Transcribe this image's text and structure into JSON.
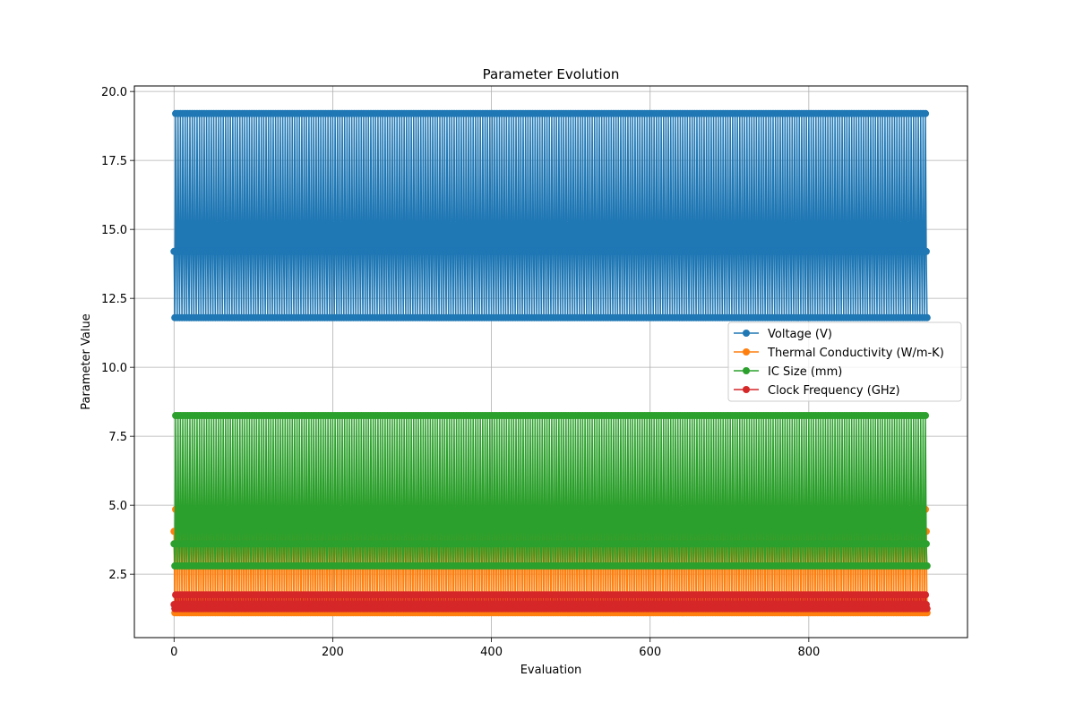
{
  "chart_data": {
    "type": "line",
    "title": "Parameter Evolution",
    "xlabel": "Evaluation",
    "ylabel": "Parameter Value",
    "xlim": [
      -50,
      1000
    ],
    "ylim": [
      0.2,
      20.2
    ],
    "x_ticks": [
      0,
      200,
      400,
      600,
      800
    ],
    "y_ticks": [
      2.5,
      5.0,
      7.5,
      10.0,
      12.5,
      15.0,
      17.5,
      20.0
    ],
    "grid": true,
    "legend_position": "center-right",
    "n_evaluations": 950,
    "series": [
      {
        "name": "Voltage (V)",
        "color": "#1f77b4",
        "levels": [
          14.2,
          11.8,
          19.2
        ]
      },
      {
        "name": "Thermal Conductivity (W/m-K)",
        "color": "#ff7f0e",
        "levels": [
          4.05,
          1.1,
          4.85
        ]
      },
      {
        "name": "IC Size (mm)",
        "color": "#2ca02c",
        "levels": [
          3.6,
          2.8,
          8.25
        ]
      },
      {
        "name": "Clock Frequency (GHz)",
        "color": "#d62728",
        "levels": [
          1.4,
          1.25,
          1.75
        ]
      }
    ]
  }
}
